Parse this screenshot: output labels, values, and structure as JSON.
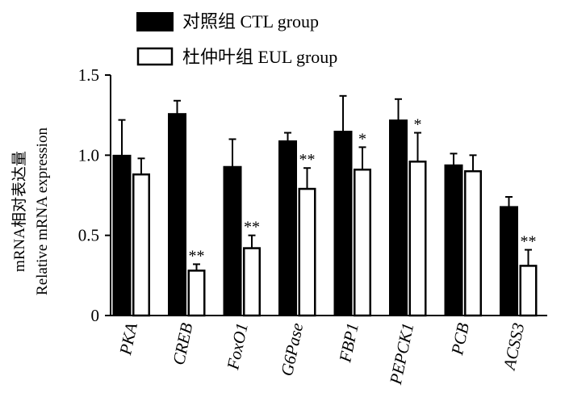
{
  "chart_data": {
    "type": "bar",
    "ylabel_line1": "mRNA相对表达量",
    "ylabel_line2": "Relative mRNA expression",
    "ylim": [
      0,
      1.5
    ],
    "yticks": [
      "0",
      "0.5",
      "1.0",
      "1.5"
    ],
    "ytick_values": [
      0,
      0.5,
      1.0,
      1.5
    ],
    "categories": [
      "PKA",
      "CREB",
      "FoxO1",
      "G6Pase",
      "FBP1",
      "PEPCK1",
      "PCB",
      "ACSS3"
    ],
    "series": [
      {
        "name": "对照组  CTL group",
        "fill": "#000000",
        "values": [
          1.0,
          1.26,
          0.93,
          1.09,
          1.15,
          1.22,
          0.94,
          0.68
        ],
        "errors": [
          0.22,
          0.08,
          0.17,
          0.05,
          0.22,
          0.13,
          0.07,
          0.06
        ],
        "significance": [
          "",
          "",
          "",
          "",
          "",
          "",
          "",
          ""
        ]
      },
      {
        "name": "杜仲叶组  EUL group",
        "fill": "#ffffff",
        "values": [
          0.88,
          0.28,
          0.42,
          0.79,
          0.91,
          0.96,
          0.9,
          0.31
        ],
        "errors": [
          0.1,
          0.04,
          0.08,
          0.13,
          0.14,
          0.18,
          0.1,
          0.1
        ],
        "significance": [
          "",
          "**",
          "**",
          "**",
          "*",
          "*",
          "",
          "**"
        ]
      }
    ],
    "legend_position": "top"
  }
}
